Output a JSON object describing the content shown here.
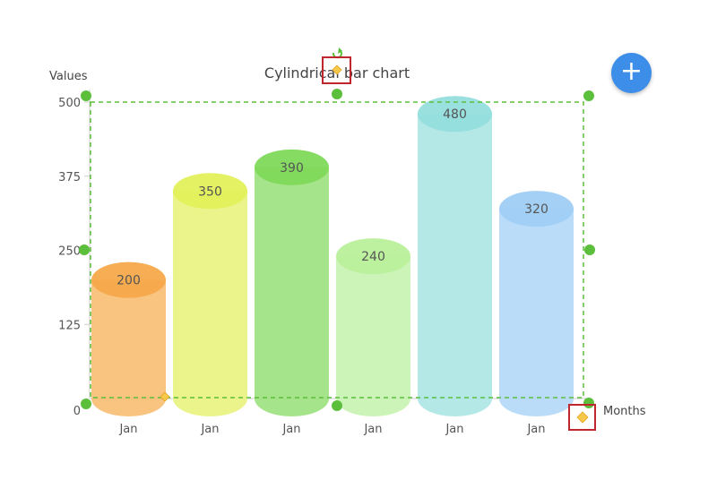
{
  "chart_data": {
    "type": "bar",
    "style": "cylindrical",
    "title": "Cylindrical bar chart",
    "xlabel": "Months",
    "ylabel": "Values",
    "ylim": [
      0,
      500
    ],
    "yticks": [
      0,
      125,
      250,
      375,
      500
    ],
    "categories": [
      "Jan",
      "Jan",
      "Jan",
      "Jan",
      "Jan",
      "Jan"
    ],
    "values": [
      200,
      350,
      390,
      240,
      480,
      320
    ],
    "colors": [
      "#f6a94a",
      "#e1f05a",
      "#80d95a",
      "#b9f09a",
      "#93dedd",
      "#9fcdf6"
    ],
    "grid": false,
    "legend": "none"
  },
  "toolbar": {
    "add_icon": "plus-icon",
    "add_glyph": "+",
    "add_color": "#3d8ee8"
  },
  "selection": {
    "handle_color": "#5cbf3c",
    "border_color": "#5cbf3c",
    "control_color": "#f7c94a",
    "highlight_color": "#c0272d",
    "rotate_icon": "rotate-icon"
  }
}
